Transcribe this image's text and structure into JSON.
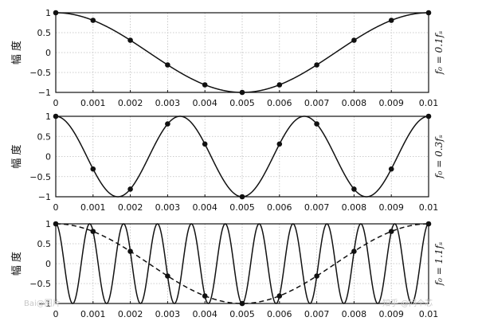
{
  "chart_data": [
    {
      "type": "line",
      "ylabel": "幅 度",
      "panel_label": "f₀ = 0.1fₛ",
      "xlim": [
        0,
        0.01
      ],
      "ylim": [
        -1,
        1
      ],
      "x_ticks": [
        "0",
        "0.001",
        "0.002",
        "0.003",
        "0.004",
        "0.005",
        "0.006",
        "0.007",
        "0.008",
        "0.009",
        "0.01"
      ],
      "y_ticks": [
        "1",
        "0.5",
        "0",
        "−0.5",
        "−1"
      ],
      "grid": true,
      "series": [
        {
          "style": "solid",
          "signal": "cos(2π·100·t)",
          "frequency_hz": 100,
          "t_range": [
            0,
            0.01
          ]
        }
      ],
      "samples": {
        "x": [
          0,
          0.001,
          0.002,
          0.003,
          0.004,
          0.005,
          0.006,
          0.007,
          0.008,
          0.009,
          0.01
        ],
        "y": [
          1,
          0.81,
          0.31,
          -0.31,
          -0.81,
          -1,
          -0.81,
          -0.31,
          0.31,
          0.81,
          1
        ]
      }
    },
    {
      "type": "line",
      "ylabel": "幅 度",
      "panel_label": "f₀ = 0.3fₛ",
      "xlim": [
        0,
        0.01
      ],
      "ylim": [
        -1,
        1
      ],
      "x_ticks": [
        "0",
        "0.001",
        "0.002",
        "0.003",
        "0.004",
        "0.005",
        "0.006",
        "0.007",
        "0.008",
        "0.009",
        "0.01"
      ],
      "y_ticks": [
        "1",
        "0.5",
        "0",
        "−0.5",
        "−1"
      ],
      "grid": true,
      "series": [
        {
          "style": "solid",
          "signal": "cos(2π·300·t)",
          "frequency_hz": 300,
          "t_range": [
            0,
            0.01
          ]
        }
      ],
      "samples": {
        "x": [
          0,
          0.001,
          0.002,
          0.003,
          0.004,
          0.005,
          0.006,
          0.007,
          0.008,
          0.009,
          0.01
        ],
        "y": [
          1,
          -0.31,
          -0.81,
          0.81,
          0.31,
          -1,
          0.31,
          0.81,
          -0.81,
          -0.31,
          1
        ]
      }
    },
    {
      "type": "line",
      "ylabel": "幅 度",
      "panel_label": "f₀ = 1.1fₛ",
      "xlim": [
        0,
        0.01
      ],
      "ylim": [
        -1,
        1
      ],
      "x_ticks": [
        "0",
        "0.001",
        "0.002",
        "0.003",
        "0.004",
        "0.005",
        "0.006",
        "0.007",
        "0.008",
        "0.009",
        "0.01"
      ],
      "y_ticks": [
        "1",
        "0.5",
        "0",
        "−0.5",
        "−1"
      ],
      "grid": true,
      "series": [
        {
          "style": "solid",
          "signal": "cos(2π·1100·t)",
          "frequency_hz": 1100,
          "t_range": [
            0,
            0.01
          ]
        },
        {
          "style": "dashed",
          "signal": "cos(2π·100·t)",
          "frequency_hz": 100,
          "t_range": [
            0,
            0.01
          ]
        }
      ],
      "samples": {
        "x": [
          0,
          0.001,
          0.002,
          0.003,
          0.004,
          0.005,
          0.006,
          0.007,
          0.008,
          0.009,
          0.01
        ],
        "y": [
          1,
          0.81,
          0.31,
          -0.31,
          -0.81,
          -1,
          -0.81,
          -0.31,
          0.31,
          0.81,
          1
        ]
      }
    }
  ],
  "watermark": {
    "left": "Bai@图片",
    "right": "知乎 @问个芯"
  }
}
